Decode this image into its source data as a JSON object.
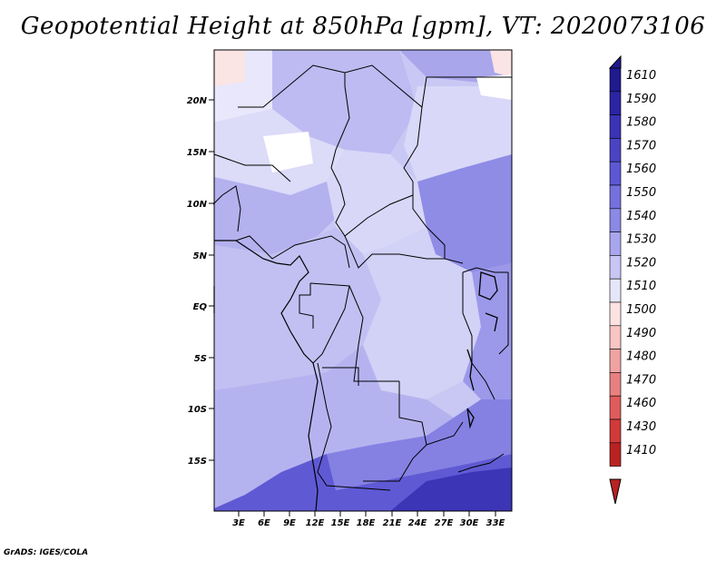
{
  "title": "Geopotential Height at 850hPa [gpm], VT: 2020073106",
  "credit": "GrADS: IGES/COLA",
  "map": {
    "lat_ticks": [
      "20N",
      "15N",
      "10N",
      "5N",
      "EQ",
      "5S",
      "10S",
      "15S"
    ],
    "lon_ticks": [
      "3E",
      "6E",
      "9E",
      "12E",
      "15E",
      "18E",
      "21E",
      "24E",
      "27E",
      "30E",
      "33E"
    ]
  },
  "colorbar": {
    "levels": [
      "1610",
      "1590",
      "1580",
      "1570",
      "1560",
      "1550",
      "1540",
      "1530",
      "1520",
      "1510",
      "1500",
      "1490",
      "1480",
      "1470",
      "1460",
      "1430",
      "1410"
    ],
    "colors": [
      "#1f1a8e",
      "#2b24a3",
      "#3a33b5",
      "#4a44c4",
      "#5c58d3",
      "#7470de",
      "#8b89e6",
      "#a8a6ee",
      "#c7c6f4",
      "#e6e6fa",
      "#fde2e2",
      "#f8c4c4",
      "#f1a3a3",
      "#e98080",
      "#df5c5c",
      "#d03a3a",
      "#b92222"
    ]
  },
  "colors": {
    "axis": "#000000",
    "background": "#ffffff",
    "highlight": "#fbe4e4"
  }
}
